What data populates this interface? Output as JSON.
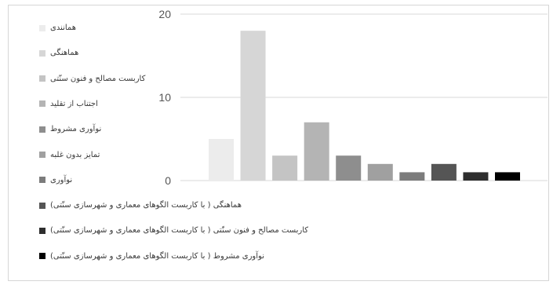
{
  "chart_data": {
    "type": "bar",
    "ylim": [
      0,
      20
    ],
    "yticks": [
      "0",
      "10",
      "20"
    ],
    "grid": true,
    "legend_position": "left",
    "series": [
      {
        "name": "همانندی",
        "value": 5,
        "color": "#ececec"
      },
      {
        "name": "هماهنگی",
        "value": 18,
        "color": "#d6d6d6"
      },
      {
        "name": "کاربست مصالح و فنون سنّتی",
        "value": 3,
        "color": "#c4c4c4"
      },
      {
        "name": "اجتناب از تقلید",
        "value": 7,
        "color": "#b4b4b4"
      },
      {
        "name": "نوآوری مشروط",
        "value": 3,
        "color": "#8e8e8e"
      },
      {
        "name": "تمایز بدون غلبه",
        "value": 2,
        "color": "#a0a0a0"
      },
      {
        "name": "نوآوری",
        "value": 1,
        "color": "#7c7c7c"
      },
      {
        "name": "هماهنگی ( با کاربست الگوهای معماری و شهرسازی سنّتی)",
        "value": 2,
        "color": "#555555"
      },
      {
        "name": "کاربست مصالح و فنون سنّتی ( با کاربست الگوهای معماری و شهرسازی سنّتی)",
        "value": 1,
        "color": "#2e2e2e"
      },
      {
        "name": "نوآوری مشروط ( با کاربست الگوهای معماری و شهرسازی سنّتی)",
        "value": 1,
        "color": "#000000"
      }
    ]
  }
}
